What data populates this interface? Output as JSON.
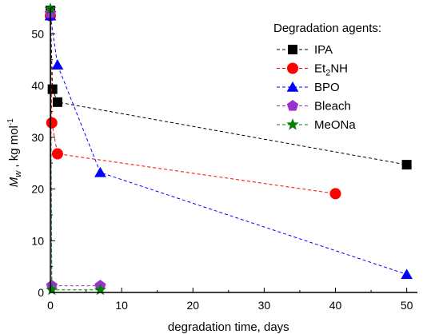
{
  "chart_data": {
    "type": "scatter",
    "xlabel": "degradation time, days",
    "ylabel": {
      "main": "M",
      "sub": "w",
      "sep": " , kg mol",
      "sup": "-1"
    },
    "xlim": [
      0,
      51.5
    ],
    "ylim": [
      0,
      55
    ],
    "x_ticks": [
      0,
      10,
      20,
      30,
      40,
      50
    ],
    "y_ticks": [
      0,
      10,
      20,
      30,
      40,
      50
    ],
    "grid": false,
    "legend_position": "top-right",
    "legend": {
      "title": "Degradation agents:",
      "entries": [
        {
          "parts": [
            {
              "t": "IPA"
            }
          ]
        },
        {
          "parts": [
            {
              "t": "Et"
            },
            {
              "t": "2",
              "sub": true
            },
            {
              "t": "NH"
            }
          ]
        },
        {
          "parts": [
            {
              "t": "BPO"
            }
          ]
        },
        {
          "parts": [
            {
              "t": "Bleach"
            }
          ]
        },
        {
          "parts": [
            {
              "t": "MeONa"
            }
          ]
        }
      ]
    },
    "series": [
      {
        "name": "IPA",
        "color": "#000000",
        "marker": "square",
        "points": [
          [
            0,
            54.5
          ],
          [
            0.3,
            39.3
          ],
          [
            1,
            36.8
          ],
          [
            50,
            24.7
          ]
        ]
      },
      {
        "name": "Et2NH",
        "color": "#ff0000",
        "marker": "circle",
        "points": [
          [
            0,
            53.5
          ],
          [
            0.2,
            32.8
          ],
          [
            1,
            26.8
          ],
          [
            40,
            19.1
          ]
        ]
      },
      {
        "name": "BPO",
        "color": "#0000ff",
        "marker": "triangle",
        "points": [
          [
            0,
            53.5
          ],
          [
            1,
            44
          ],
          [
            7,
            23.2
          ],
          [
            50,
            3.5
          ]
        ]
      },
      {
        "name": "Bleach",
        "color": "#9933cc",
        "marker": "pentagon",
        "points": [
          [
            0,
            54
          ],
          [
            0.2,
            1.3
          ],
          [
            7,
            1.3
          ]
        ]
      },
      {
        "name": "MeONa",
        "color": "#008000",
        "marker": "star",
        "points": [
          [
            0,
            54.8
          ],
          [
            0.2,
            0.5
          ],
          [
            7,
            0.5
          ]
        ]
      }
    ]
  }
}
